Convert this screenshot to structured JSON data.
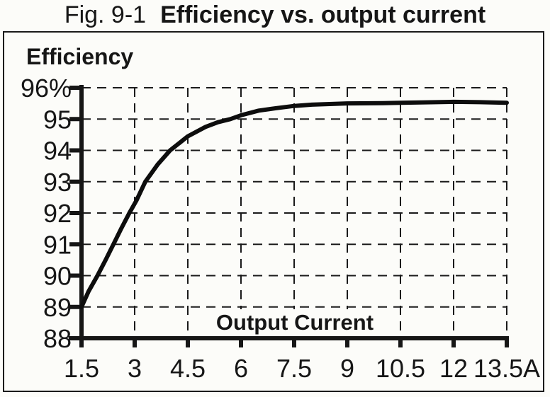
{
  "figure": {
    "label": "Fig. 9-1",
    "title": "Efficiency vs. output current"
  },
  "colors": {
    "ink": "#161616",
    "curve": "#0d0d0d",
    "grid": "#1a1a1a",
    "background": "#fcfcf9"
  },
  "chart_data": {
    "type": "line",
    "title": "Efficiency vs. output current",
    "y_axis_label": "Efficiency",
    "x_axis_label": "Output Current",
    "x_unit": "A",
    "xlim": [
      1.5,
      13.5
    ],
    "ylim": [
      88,
      96
    ],
    "x_ticks": [
      1.5,
      3,
      4.5,
      6,
      7.5,
      9,
      10.5,
      12,
      13.5
    ],
    "x_tick_labels": [
      "1.5",
      "3",
      "4.5",
      "6",
      "7.5",
      "9",
      "10.5",
      "12",
      "13.5A"
    ],
    "y_ticks": [
      96,
      95,
      94,
      93,
      92,
      91,
      90,
      89,
      88
    ],
    "y_tick_labels": [
      "96%",
      "95",
      "94",
      "93",
      "92",
      "91",
      "90",
      "89",
      "88"
    ],
    "grid": "dashed",
    "legend": "none",
    "series": [
      {
        "name": "efficiency",
        "points": [
          [
            1.5,
            89.0
          ],
          [
            1.7,
            89.5
          ],
          [
            1.95,
            90.0
          ],
          [
            2.18,
            90.5
          ],
          [
            2.4,
            91.0
          ],
          [
            2.62,
            91.5
          ],
          [
            2.85,
            92.0
          ],
          [
            3.05,
            92.4
          ],
          [
            3.3,
            93.0
          ],
          [
            3.65,
            93.55
          ],
          [
            4.0,
            94.0
          ],
          [
            4.5,
            94.45
          ],
          [
            5.0,
            94.75
          ],
          [
            5.35,
            94.9
          ],
          [
            5.7,
            95.0
          ],
          [
            6.0,
            95.12
          ],
          [
            6.5,
            95.27
          ],
          [
            7.0,
            95.35
          ],
          [
            7.5,
            95.42
          ],
          [
            8.0,
            95.46
          ],
          [
            9.0,
            95.5
          ],
          [
            10.0,
            95.51
          ],
          [
            10.5,
            95.52
          ],
          [
            11.5,
            95.54
          ],
          [
            12.0,
            95.55
          ],
          [
            12.75,
            95.54
          ],
          [
            13.5,
            95.52
          ]
        ]
      }
    ]
  }
}
